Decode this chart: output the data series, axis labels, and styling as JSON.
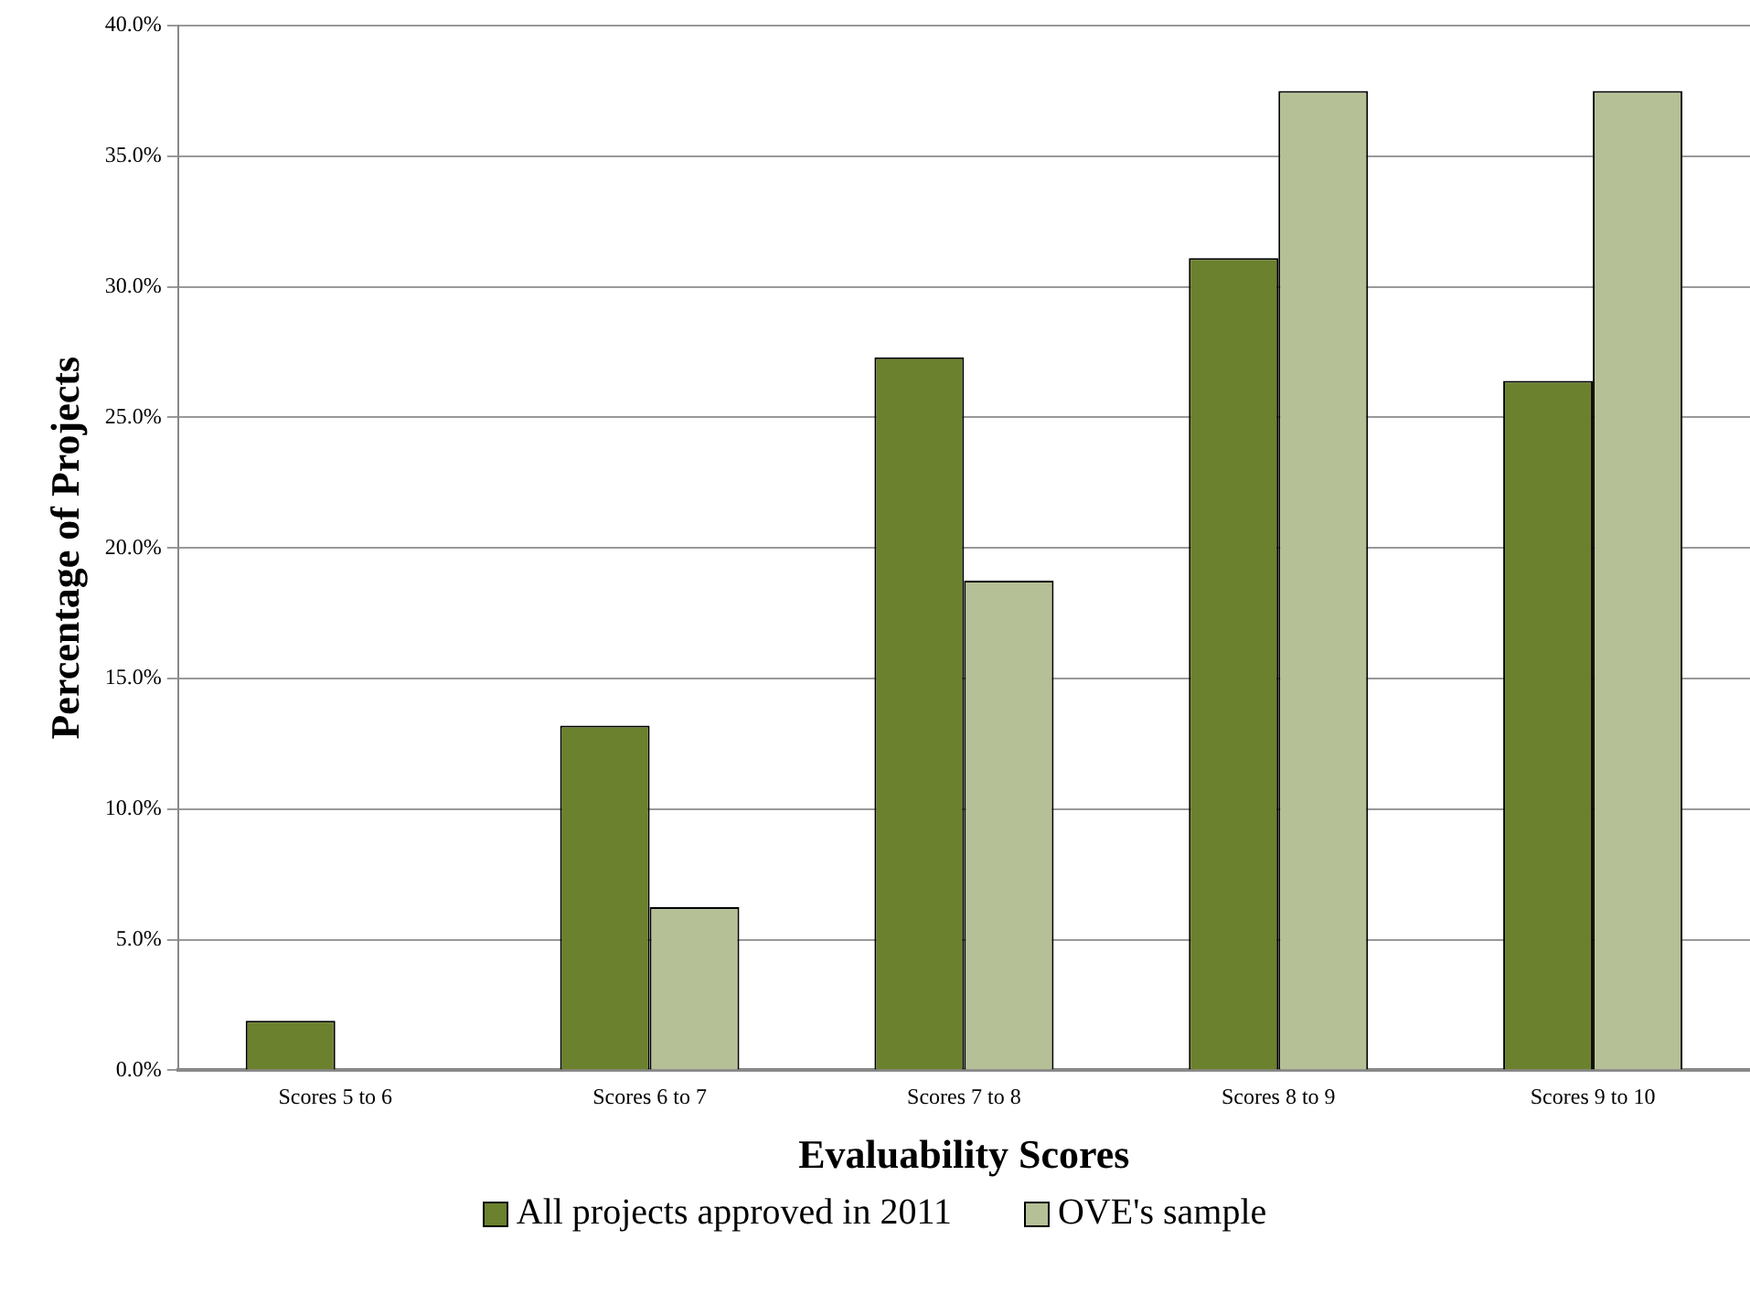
{
  "chart_data": {
    "type": "bar",
    "xlabel": "Evaluability Scores",
    "ylabel": "Percentage of Projects",
    "categories": [
      "Scores 5 to 6",
      "Scores 6 to 7",
      "Scores 7 to 8",
      "Scores 8 to 9",
      "Scores 9 to 10"
    ],
    "series": [
      {
        "name": "All projects approved in 2011",
        "color": "#6b812d",
        "values": [
          1.9,
          13.2,
          27.3,
          31.1,
          26.4
        ]
      },
      {
        "name": "OVE's sample",
        "color": "#b5c096",
        "values": [
          0,
          6.25,
          18.75,
          37.5,
          37.5
        ]
      }
    ],
    "ylim": [
      0,
      40
    ],
    "yticks": [
      {
        "value": 0,
        "label": "0.0%"
      },
      {
        "value": 5,
        "label": "5.0%"
      },
      {
        "value": 10,
        "label": "10.0%"
      },
      {
        "value": 15,
        "label": "15.0%"
      },
      {
        "value": 20,
        "label": "20.0%"
      },
      {
        "value": 25,
        "label": "25.0%"
      },
      {
        "value": 30,
        "label": "30.0%"
      },
      {
        "value": 35,
        "label": "35.0%"
      },
      {
        "value": 40,
        "label": "40.0%"
      }
    ],
    "grid": "y",
    "legend": "bottom"
  }
}
